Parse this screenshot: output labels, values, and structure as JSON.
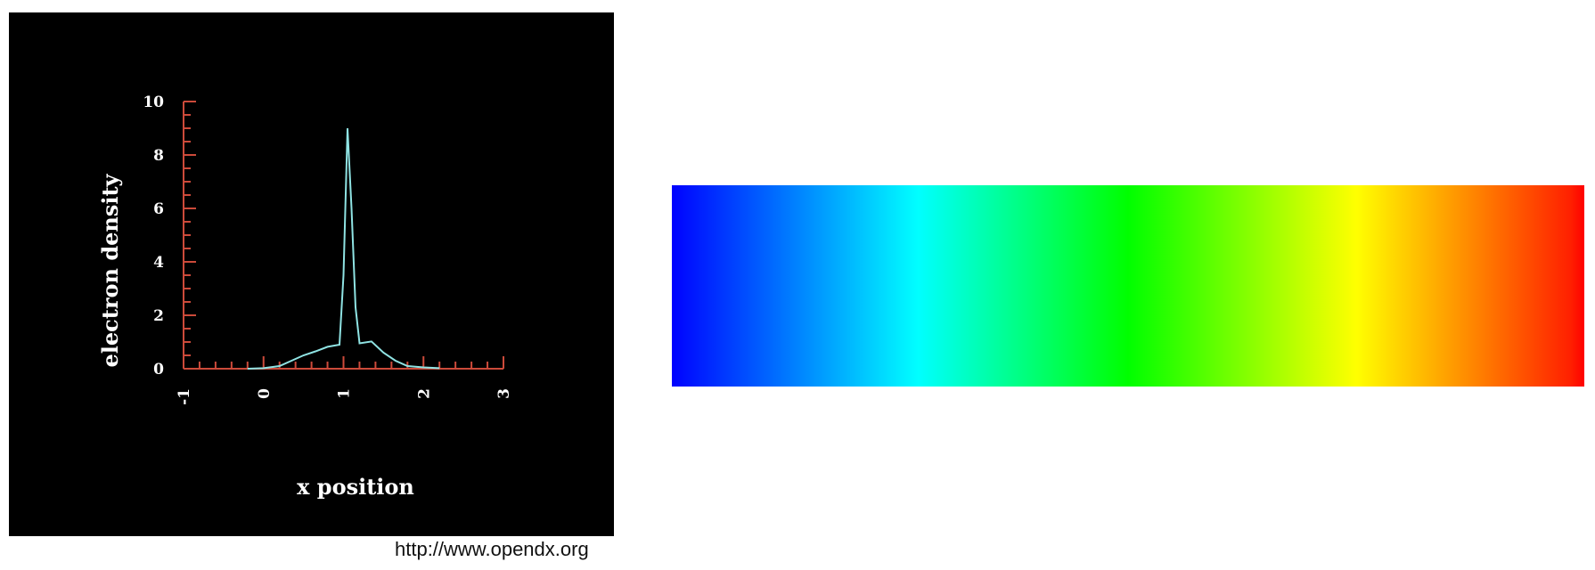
{
  "source_credit": "http://www.opendx.org",
  "colors": {
    "panel_bg": "#000000",
    "axis": "#cc4a3a",
    "line": "#8fe3e3",
    "text": "#ffffff"
  },
  "chart_data": [
    {
      "type": "line",
      "xlabel": "x position",
      "ylabel": "electron density",
      "xlim": [
        -1,
        3
      ],
      "ylim": [
        0,
        10
      ],
      "x_ticks": [
        -1,
        0,
        1,
        2,
        3
      ],
      "y_ticks": [
        0,
        2,
        4,
        6,
        8,
        10
      ],
      "grid": false,
      "series": [
        {
          "x": [
            -0.2,
            0.0,
            0.2,
            0.35,
            0.5,
            0.65,
            0.8,
            0.95,
            1.0,
            1.05,
            1.1,
            1.15,
            1.2,
            1.35,
            1.5,
            1.65,
            1.8,
            2.0,
            2.2
          ],
          "y": [
            0.0,
            0.02,
            0.1,
            0.3,
            0.5,
            0.65,
            0.82,
            0.9,
            3.5,
            9.0,
            6.0,
            2.3,
            0.95,
            1.02,
            0.6,
            0.3,
            0.1,
            0.05,
            0.02
          ]
        }
      ]
    },
    {
      "type": "heatmap",
      "orientation": "horizontal",
      "colormap": [
        {
          "stop": 0.0,
          "color": "#0000ff"
        },
        {
          "stop": 0.015,
          "color": "#0010ff"
        },
        {
          "stop": 0.27,
          "color": "#00ffff"
        },
        {
          "stop": 0.5,
          "color": "#00ff00"
        },
        {
          "stop": 0.75,
          "color": "#ffff00"
        },
        {
          "stop": 0.985,
          "color": "#ff2000"
        },
        {
          "stop": 1.0,
          "color": "#ff0000"
        }
      ]
    }
  ]
}
